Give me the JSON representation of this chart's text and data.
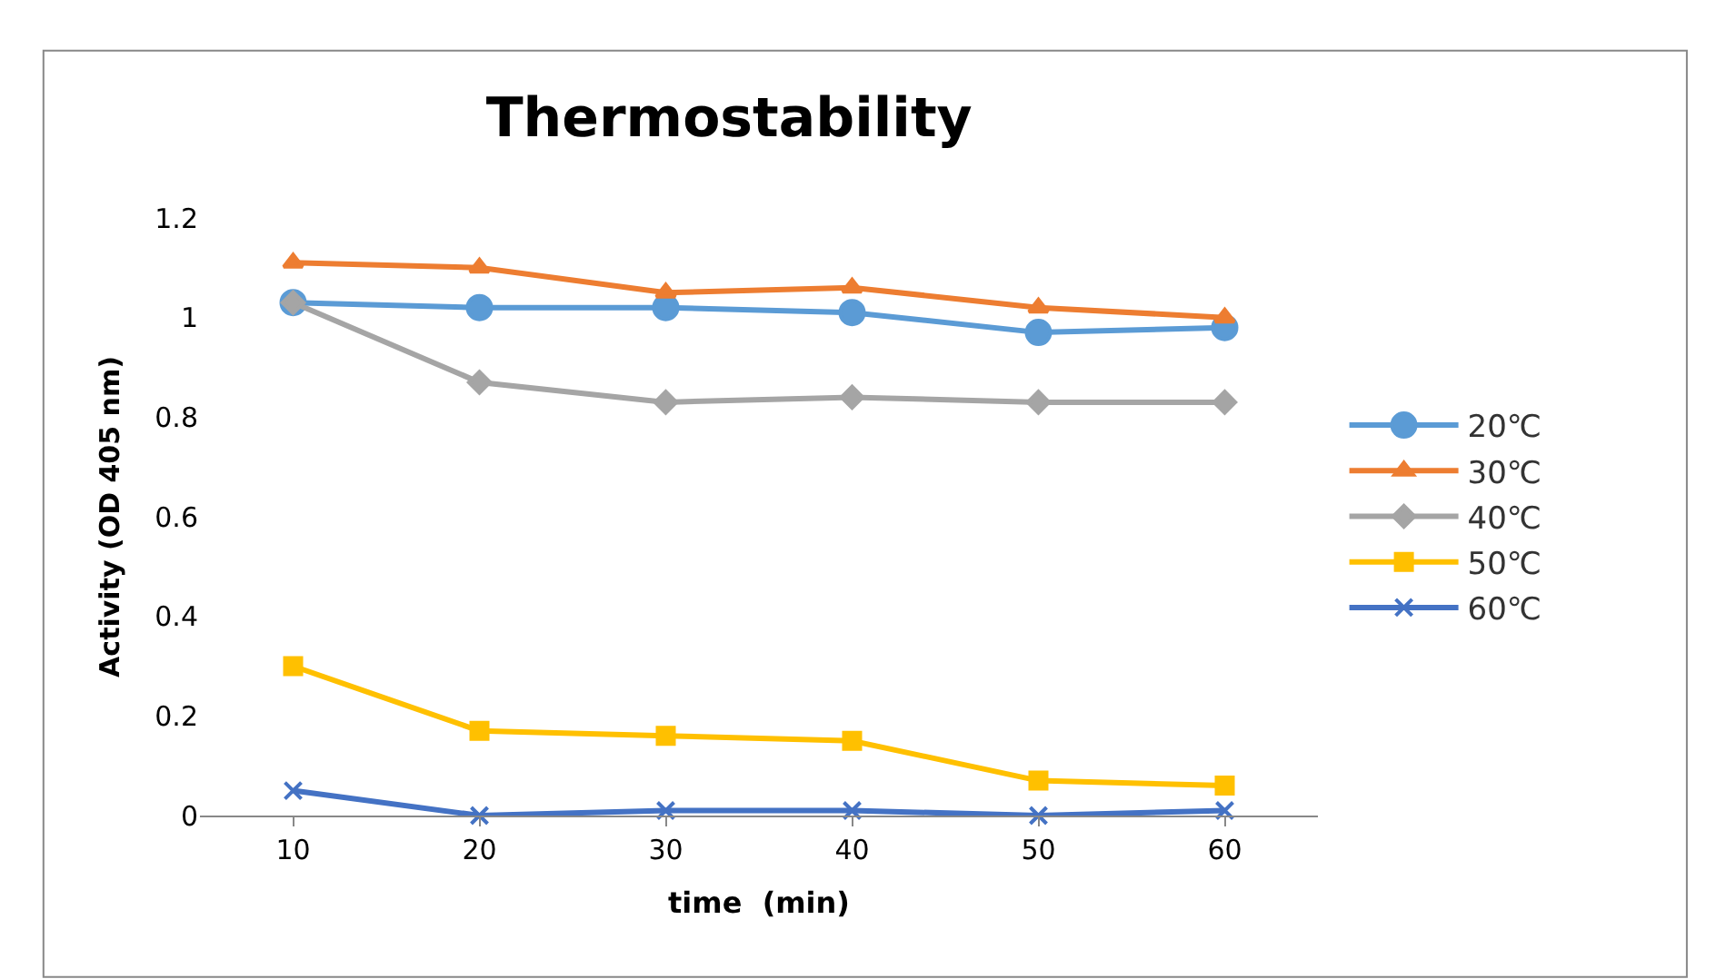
{
  "chart_data": {
    "type": "line",
    "title": "Thermostability",
    "xlabel": "time  (min)",
    "ylabel": "Activity (OD 405 nm)",
    "categories": [
      "10",
      "20",
      "30",
      "40",
      "50",
      "60"
    ],
    "ylim": [
      0,
      1.2
    ],
    "yticks": [
      0,
      0.2,
      0.4,
      0.6,
      0.8,
      1,
      1.2
    ],
    "grid": false,
    "legend": "right",
    "line_style": "solid",
    "series": [
      {
        "name": "20℃",
        "color": "#5b9bd5",
        "marker": "circle",
        "values": [
          1.03,
          1.02,
          1.02,
          1.01,
          0.97,
          0.98
        ]
      },
      {
        "name": "30℃",
        "color": "#ed7d31",
        "marker": "triangle",
        "values": [
          1.11,
          1.1,
          1.05,
          1.06,
          1.02,
          1.0
        ]
      },
      {
        "name": "40℃",
        "color": "#a5a5a5",
        "marker": "diamond",
        "values": [
          1.03,
          0.87,
          0.83,
          0.84,
          0.83,
          0.83
        ]
      },
      {
        "name": "50℃",
        "color": "#ffc000",
        "marker": "square",
        "values": [
          0.3,
          0.17,
          0.16,
          0.15,
          0.07,
          0.06
        ]
      },
      {
        "name": "60℃",
        "color": "#4472c4",
        "marker": "cross",
        "values": [
          0.05,
          0.0,
          0.01,
          0.01,
          0.0,
          0.01
        ]
      }
    ]
  }
}
